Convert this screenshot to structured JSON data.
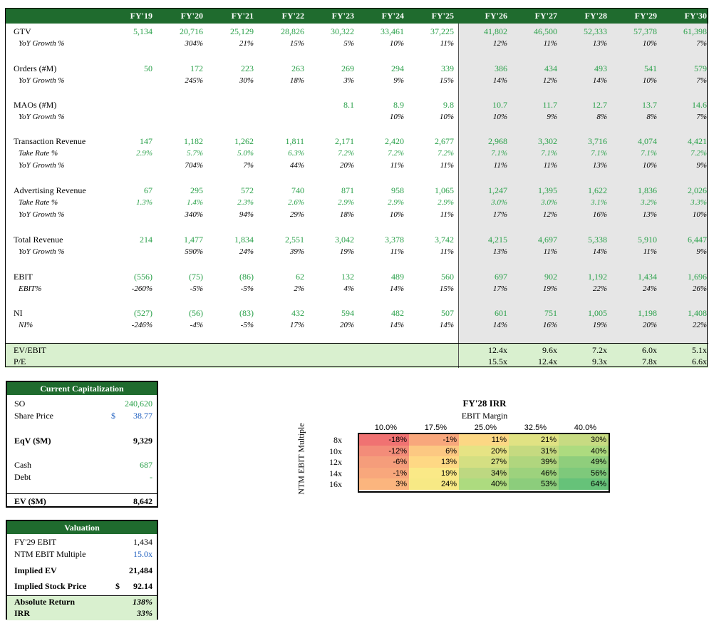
{
  "years": [
    "FY'19",
    "FY'20",
    "FY'21",
    "FY'22",
    "FY'23",
    "FY'24",
    "FY'25",
    "FY'26",
    "FY'27",
    "FY'28",
    "FY'29",
    "FY'30"
  ],
  "rows": [
    {
      "label": "GTV",
      "sub": false,
      "cls": "g",
      "values": [
        "5,134",
        "20,716",
        "25,129",
        "28,826",
        "30,322",
        "33,461",
        "37,225",
        "41,802",
        "46,500",
        "52,333",
        "57,378",
        "61,398"
      ]
    },
    {
      "label": "YoY Growth %",
      "sub": true,
      "cls": "pct",
      "values": [
        "",
        "304%",
        "21%",
        "15%",
        "5%",
        "10%",
        "11%",
        "12%",
        "11%",
        "13%",
        "10%",
        "7%"
      ]
    },
    {
      "label": "Orders (#M)",
      "sub": false,
      "cls": "g",
      "values": [
        "50",
        "172",
        "223",
        "263",
        "269",
        "294",
        "339",
        "386",
        "434",
        "493",
        "541",
        "579"
      ]
    },
    {
      "label": "YoY Growth %",
      "sub": true,
      "cls": "pct",
      "values": [
        "",
        "245%",
        "30%",
        "18%",
        "3%",
        "9%",
        "15%",
        "14%",
        "12%",
        "14%",
        "10%",
        "7%"
      ]
    },
    {
      "label": "MAOs (#M)",
      "sub": false,
      "cls": "g",
      "values": [
        "",
        "",
        "",
        "",
        "8.1",
        "8.9",
        "9.8",
        "10.7",
        "11.7",
        "12.7",
        "13.7",
        "14.6"
      ]
    },
    {
      "label": "YoY Growth %",
      "sub": true,
      "cls": "pct",
      "values": [
        "",
        "",
        "",
        "",
        "",
        "10%",
        "10%",
        "10%",
        "9%",
        "8%",
        "8%",
        "7%"
      ]
    },
    {
      "label": "Transaction Revenue",
      "sub": false,
      "cls": "g",
      "values": [
        "147",
        "1,182",
        "1,262",
        "1,811",
        "2,171",
        "2,420",
        "2,677",
        "2,968",
        "3,302",
        "3,716",
        "4,074",
        "4,421"
      ]
    },
    {
      "label": "Take Rate %",
      "sub": true,
      "cls": "gpct",
      "values": [
        "2.9%",
        "5.7%",
        "5.0%",
        "6.3%",
        "7.2%",
        "7.2%",
        "7.2%",
        "7.1%",
        "7.1%",
        "7.1%",
        "7.1%",
        "7.2%"
      ]
    },
    {
      "label": "YoY Growth %",
      "sub": true,
      "cls": "pct",
      "values": [
        "",
        "704%",
        "7%",
        "44%",
        "20%",
        "11%",
        "11%",
        "11%",
        "11%",
        "13%",
        "10%",
        "9%"
      ]
    },
    {
      "label": "Advertising Revenue",
      "sub": false,
      "cls": "g",
      "values": [
        "67",
        "295",
        "572",
        "740",
        "871",
        "958",
        "1,065",
        "1,247",
        "1,395",
        "1,622",
        "1,836",
        "2,026"
      ]
    },
    {
      "label": "Take Rate %",
      "sub": true,
      "cls": "gpct",
      "values": [
        "1.3%",
        "1.4%",
        "2.3%",
        "2.6%",
        "2.9%",
        "2.9%",
        "2.9%",
        "3.0%",
        "3.0%",
        "3.1%",
        "3.2%",
        "3.3%"
      ]
    },
    {
      "label": "YoY Growth %",
      "sub": true,
      "cls": "pct",
      "values": [
        "",
        "340%",
        "94%",
        "29%",
        "18%",
        "10%",
        "11%",
        "17%",
        "12%",
        "16%",
        "13%",
        "10%"
      ]
    },
    {
      "label": "Total Revenue",
      "sub": false,
      "cls": "g",
      "values": [
        "214",
        "1,477",
        "1,834",
        "2,551",
        "3,042",
        "3,378",
        "3,742",
        "4,215",
        "4,697",
        "5,338",
        "5,910",
        "6,447"
      ]
    },
    {
      "label": "YoY Growth %",
      "sub": true,
      "cls": "pct",
      "values": [
        "",
        "590%",
        "24%",
        "39%",
        "19%",
        "11%",
        "11%",
        "13%",
        "11%",
        "14%",
        "11%",
        "9%"
      ]
    },
    {
      "label": "EBIT",
      "sub": false,
      "cls": "g",
      "values": [
        "(556)",
        "(75)",
        "(86)",
        "62",
        "132",
        "489",
        "560",
        "697",
        "902",
        "1,192",
        "1,434",
        "1,696"
      ]
    },
    {
      "label": "EBIT%",
      "sub": true,
      "cls": "pct",
      "values": [
        "-260%",
        "-5%",
        "-5%",
        "2%",
        "4%",
        "14%",
        "15%",
        "17%",
        "19%",
        "22%",
        "24%",
        "26%"
      ]
    },
    {
      "label": "NI",
      "sub": false,
      "cls": "g",
      "values": [
        "(527)",
        "(56)",
        "(83)",
        "432",
        "594",
        "482",
        "507",
        "601",
        "751",
        "1,005",
        "1,198",
        "1,408"
      ]
    },
    {
      "label": "NI%",
      "sub": true,
      "cls": "pct",
      "values": [
        "-246%",
        "-4%",
        "-5%",
        "17%",
        "20%",
        "14%",
        "14%",
        "14%",
        "16%",
        "19%",
        "20%",
        "22%"
      ]
    }
  ],
  "multiples": [
    {
      "label": "EV/EBIT",
      "values": [
        "12.4x",
        "9.6x",
        "7.2x",
        "6.0x",
        "5.1x"
      ]
    },
    {
      "label": "P/E",
      "values": [
        "15.5x",
        "12.4x",
        "9.3x",
        "7.8x",
        "6.6x"
      ]
    }
  ],
  "capitalization": {
    "title": "Current Capitalization",
    "so_label": "SO",
    "so_value": "240,620",
    "price_label": "Share Price",
    "price_currency": "$",
    "price_value": "38.77",
    "eqv_label": "EqV ($M)",
    "eqv_value": "9,329",
    "cash_label": "Cash",
    "cash_value": "687",
    "debt_label": "Debt",
    "debt_value": "-",
    "ev_label": "EV ($M)",
    "ev_value": "8,642"
  },
  "valuation": {
    "title": "Valuation",
    "ebit_label": "FY'29 EBIT",
    "ebit_value": "1,434",
    "mult_label": "NTM EBIT Multiple",
    "mult_value": "15.0x",
    "iev_label": "Implied EV",
    "iev_value": "21,484",
    "isp_label": "Implied Stock Price",
    "isp_currency": "$",
    "isp_value": "92.14",
    "ret_label": "Absolute Return",
    "ret_value": "138%",
    "irr_label": "IRR",
    "irr_value": "33%"
  },
  "irr": {
    "title": "FY'28 IRR",
    "col_title": "EBIT Margin",
    "row_title": "NTM EBIT Multiple",
    "cols": [
      "10.0%",
      "17.5%",
      "25.0%",
      "32.5%",
      "40.0%"
    ],
    "rows": [
      "8x",
      "10x",
      "12x",
      "14x",
      "16x"
    ],
    "values": [
      [
        "-18%",
        "-1%",
        "11%",
        "21%",
        "30%"
      ],
      [
        "-12%",
        "6%",
        "20%",
        "31%",
        "40%"
      ],
      [
        "-6%",
        "13%",
        "27%",
        "39%",
        "49%"
      ],
      [
        "-1%",
        "19%",
        "34%",
        "46%",
        "56%"
      ],
      [
        "3%",
        "24%",
        "40%",
        "53%",
        "64%"
      ]
    ],
    "colors": [
      [
        "#f07272",
        "#f8a77c",
        "#fcd784",
        "#e0e283",
        "#c7db82"
      ],
      [
        "#f38c79",
        "#fcc882",
        "#e6e384",
        "#c5da80",
        "#addb7f"
      ],
      [
        "#f59d7b",
        "#fed884",
        "#d4df82",
        "#b0d67e",
        "#8fce7c"
      ],
      [
        "#f8a77c",
        "#fae987",
        "#bdd881",
        "#9dd27d",
        "#7ec97b"
      ],
      [
        "#fbb57e",
        "#f7e985",
        "#addb7f",
        "#8ccd7c",
        "#66c279"
      ]
    ]
  }
}
